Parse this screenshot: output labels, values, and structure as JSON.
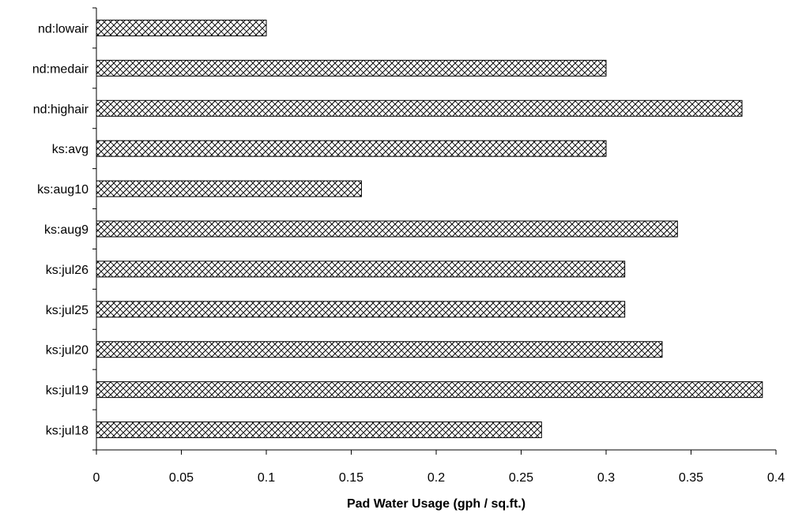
{
  "chart_data": {
    "type": "bar",
    "orientation": "horizontal",
    "categories": [
      "nd:lowair",
      "nd:medair",
      "nd:highair",
      "ks:avg",
      "ks:aug10",
      "ks:aug9",
      "ks:jul26",
      "ks:jul25",
      "ks:jul20",
      "ks:jul19",
      "ks:jul18"
    ],
    "values": [
      0.1,
      0.3,
      0.38,
      0.3,
      0.156,
      0.342,
      0.311,
      0.311,
      0.333,
      0.392,
      0.262
    ],
    "xlabel": "Pad Water Usage (gph / sq.ft.)",
    "ylabel": "",
    "xlim": [
      0,
      0.4
    ],
    "xticks": [
      "0",
      "0.05",
      "0.1",
      "0.15",
      "0.2",
      "0.25",
      "0.3",
      "0.35",
      "0.4"
    ],
    "grid": false,
    "bar_fill": "crosshatch pattern",
    "bar_color": "#000000",
    "background": "#ffffff"
  }
}
